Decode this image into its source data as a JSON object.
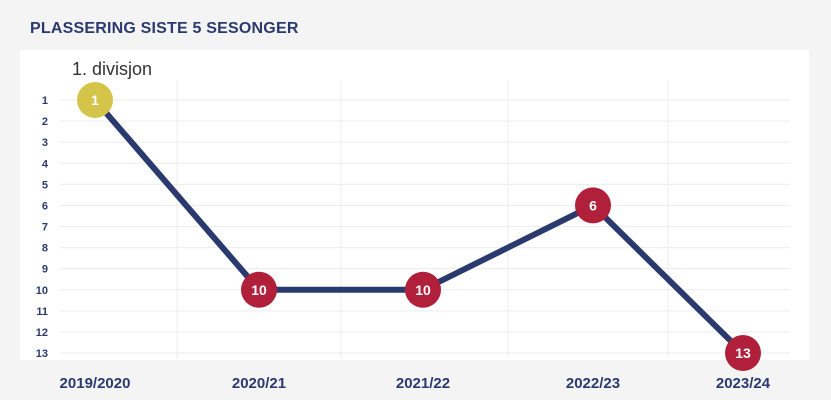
{
  "title": "PLASSERING SISTE 5 SESONGER",
  "chart_data": {
    "type": "line",
    "title": "PLASSERING SISTE 5 SESONGER",
    "annotation": "1. divisjon",
    "categories": [
      "2019/2020",
      "2020/21",
      "2021/22",
      "2022/23",
      "2023/24"
    ],
    "series": [
      {
        "values": [
          1,
          10,
          10,
          6,
          13
        ]
      }
    ],
    "ylim": [
      1,
      13
    ],
    "y_inverted": true,
    "yticks": [
      "1",
      "2",
      "3",
      "4",
      "5",
      "6",
      "7",
      "8",
      "9",
      "10",
      "11",
      "12",
      "13"
    ],
    "grid": true,
    "colors": {
      "line": "#2b3a6e",
      "marker_first": "#d4c54a",
      "marker_default": "#b0203a",
      "axis_text": "#2b3a6e"
    }
  }
}
